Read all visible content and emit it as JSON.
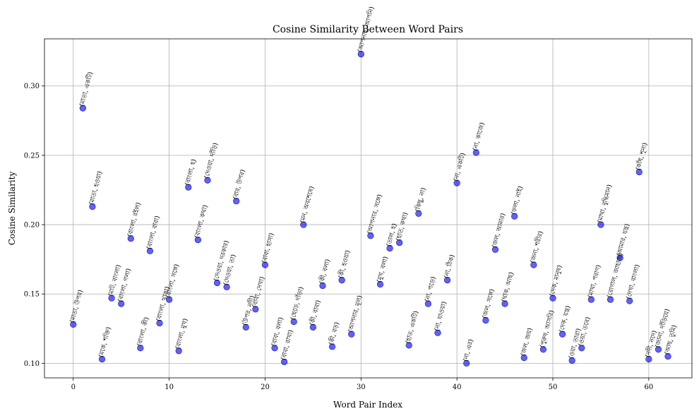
{
  "chart_data": {
    "type": "scatter",
    "title": "Cosine Similarity Between Word Pairs",
    "xlabel": "Word Pair Index",
    "ylabel": "Cosine Similarity",
    "xlim": [
      -3,
      64.5
    ],
    "ylim": [
      0.0895,
      0.334
    ],
    "xticks": [
      0,
      10,
      20,
      30,
      40,
      50,
      60
    ],
    "yticks": [
      0.1,
      0.15,
      0.2,
      0.25,
      0.3
    ],
    "ytick_labels": [
      "0.10",
      "0.15",
      "0.20",
      "0.25",
      "0.30"
    ],
    "grid": true,
    "marker_color": "#0000ff",
    "points": [
      {
        "x": 0,
        "y": 0.128,
        "label": "(মাতা, উপর)"
      },
      {
        "x": 1,
        "y": 0.284,
        "label": "(মাতা, একটি)"
      },
      {
        "x": 2,
        "y": 0.213,
        "label": "(মাতা, হওয়া)"
      },
      {
        "x": 3,
        "y": 0.103,
        "label": "(মকে, শক্তি)"
      },
      {
        "x": 4,
        "y": 0.147,
        "label": "(মাট, বাংলা)"
      },
      {
        "x": 5,
        "y": 0.143,
        "label": "(বাংলা, গলা)"
      },
      {
        "x": 6,
        "y": 0.19,
        "label": "(বাংলা, রইল)"
      },
      {
        "x": 7,
        "y": 0.111,
        "label": "(বাংলা, কী)"
      },
      {
        "x": 8,
        "y": 0.181,
        "label": "(বাংলা, বারা)"
      },
      {
        "x": 9,
        "y": 0.129,
        "label": "(বাংলা, থাকা)"
      },
      {
        "x": 10,
        "y": 0.146,
        "label": "(বাংলা, সঙ্গে)"
      },
      {
        "x": 11,
        "y": 0.109,
        "label": "(বাংলা, মুখ)"
      },
      {
        "x": 12,
        "y": 0.227,
        "label": "(বাংলা, হ)"
      },
      {
        "x": 13,
        "y": 0.189,
        "label": "(বাংলা, কথা)"
      },
      {
        "x": 14,
        "y": 0.232,
        "label": "(দেওয়া, দাঁড়ি)"
      },
      {
        "x": 15,
        "y": 0.158,
        "label": "(দেওয়া, দরকার)"
      },
      {
        "x": 16,
        "y": 0.155,
        "label": "(দেওয়া, তা)"
      },
      {
        "x": 17,
        "y": 0.217,
        "label": "(বার, উপর)"
      },
      {
        "x": 18,
        "y": 0.126,
        "label": "(উপর, নদী)"
      },
      {
        "x": 19,
        "y": 0.139,
        "label": "(বাবা, দেখা)"
      },
      {
        "x": 20,
        "y": 0.171,
        "label": "(বাবা, হাসা)"
      },
      {
        "x": 21,
        "y": 0.111,
        "label": "(বাবা, বলা)"
      },
      {
        "x": 22,
        "y": 0.101,
        "label": "(বাবা, রাখা)"
      },
      {
        "x": 23,
        "y": 0.13,
        "label": "(ছেড়ে, দাঁড়া)"
      },
      {
        "x": 24,
        "y": 0.2,
        "label": "(মন, অবশেষে)"
      },
      {
        "x": 25,
        "y": 0.126,
        "label": "(কী, বাবা)"
      },
      {
        "x": 26,
        "y": 0.156,
        "label": "(কী, বলা)"
      },
      {
        "x": 27,
        "y": 0.112,
        "label": "(কী, বড়)"
      },
      {
        "x": 28,
        "y": 0.16,
        "label": "(কী, হওয়া)"
      },
      {
        "x": 29,
        "y": 0.121,
        "label": "(আপনার, মূল)"
      },
      {
        "x": 30,
        "y": 0.323,
        "label": "(আপনার, আপনি)"
      },
      {
        "x": 31,
        "y": 0.192,
        "label": "(আপনার, সঙ্গে)"
      },
      {
        "x": 32,
        "y": 0.157,
        "label": "(মুখ, বলা)"
      },
      {
        "x": 33,
        "y": 0.183,
        "label": "(তাল, হ)"
      },
      {
        "x": 34,
        "y": 0.187,
        "label": "(হাত, কথা)"
      },
      {
        "x": 35,
        "y": 0.113,
        "label": "(হাত, একটি)"
      },
      {
        "x": 36,
        "y": 0.208,
        "label": "(কিছু, না)"
      },
      {
        "x": 37,
        "y": 0.143,
        "label": "(না, পড়ে)"
      },
      {
        "x": 38,
        "y": 0.122,
        "label": "(না, যাওয়া)"
      },
      {
        "x": 39,
        "y": 0.16,
        "label": "(না, ঠিক)"
      },
      {
        "x": 40,
        "y": 0.23,
        "label": "(না, একটি)"
      },
      {
        "x": 41,
        "y": 0.1,
        "label": "(না, এর)"
      },
      {
        "x": 42,
        "y": 0.252,
        "label": "(না, কাজে)"
      },
      {
        "x": 43,
        "y": 0.131,
        "label": "(জল, সঙ্গে)"
      },
      {
        "x": 44,
        "y": 0.182,
        "label": "(জল, আমার)"
      },
      {
        "x": 45,
        "y": 0.143,
        "label": "(থাক, আছ)"
      },
      {
        "x": 46,
        "y": 0.206,
        "label": "(ফলা, নাই)"
      },
      {
        "x": 47,
        "y": 0.104,
        "label": "(জল, জয়)"
      },
      {
        "x": 48,
        "y": 0.171,
        "label": "(জন্য, শরীর)"
      },
      {
        "x": 49,
        "y": 0.11,
        "label": "(পুরুষ, আসরি)"
      },
      {
        "x": 50,
        "y": 0.147,
        "label": "(দেক, মানুষ)"
      },
      {
        "x": 51,
        "y": 0.121,
        "label": "(দেক, যন্ত্র)"
      },
      {
        "x": 52,
        "y": 0.102,
        "label": "(ওয়া, তারা)"
      },
      {
        "x": 53,
        "y": 0.111,
        "label": "(ওয়া, তবে)"
      },
      {
        "x": 54,
        "y": 0.146,
        "label": "(মাথা, পরাণ)"
      },
      {
        "x": 55,
        "y": 0.2,
        "label": "(মাথা, বুদ্ধিমান)"
      },
      {
        "x": 56,
        "y": 0.146,
        "label": "(রোগাল, জাহাজ)"
      },
      {
        "x": 57,
        "y": 0.176,
        "label": "(আমার, যন্ত্র)"
      },
      {
        "x": 58,
        "y": 0.145,
        "label": "(দেখা, বাংলা)"
      },
      {
        "x": 59,
        "y": 0.238,
        "label": "(কাঁধ, শূন্য)"
      },
      {
        "x": 60,
        "y": 0.103,
        "label": "(নদী, নদে)"
      },
      {
        "x": 61,
        "y": 0.11,
        "label": "(জানা, দাঁড়িয়ে)"
      },
      {
        "x": 62,
        "y": 0.105,
        "label": "(আছ, তুমি)"
      }
    ]
  }
}
